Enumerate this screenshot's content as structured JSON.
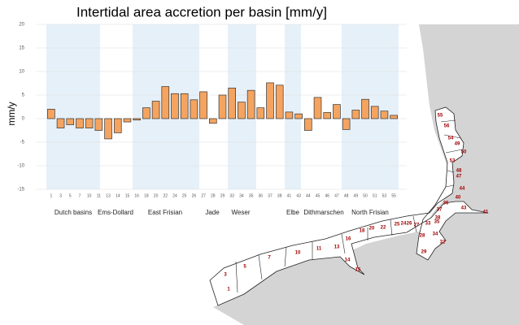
{
  "chart_data": {
    "type": "bar",
    "title": "Intertidal area accretion per basin [mm/y]",
    "y_label": "mm/y",
    "categories": [
      "1",
      "3",
      "5",
      "7",
      "10",
      "11",
      "13",
      "14",
      "15",
      "16",
      "18",
      "20",
      "22",
      "24",
      "25",
      "26",
      "27",
      "28",
      "29",
      "33",
      "34",
      "35",
      "36",
      "37",
      "38",
      "41",
      "43",
      "44",
      "45",
      "46",
      "47",
      "48",
      "49",
      "50",
      "51",
      "53",
      "55"
    ],
    "values": [
      2,
      -2,
      -1.3,
      -2,
      -2,
      -2.5,
      -4.3,
      -3,
      -0.7,
      -0.3,
      2.3,
      3.7,
      6.8,
      5.3,
      5.3,
      4,
      5.7,
      -1,
      5,
      6.5,
      3.5,
      6,
      2.3,
      7.6,
      7.1,
      1.4,
      1,
      -2.5,
      4.5,
      1.3,
      3,
      -2.3,
      1.8,
      4.1,
      2.6,
      1.6,
      0.7
    ],
    "color": "#f4a460",
    "ylim": [
      -15,
      20
    ],
    "yticks": [
      -15,
      -10,
      -5,
      0,
      5,
      10,
      15,
      20
    ],
    "grid": true,
    "groups": [
      "Dutch basins",
      "Ems-Dollard",
      "East Frisian",
      "Jade",
      "Weser",
      "Elbe",
      "Dithmarschen",
      "North Frisian"
    ]
  },
  "map_labels": [
    "55",
    "56",
    "54",
    "49",
    "50",
    "53",
    "48",
    "47",
    "44",
    "40",
    "43",
    "41",
    "37",
    "36",
    "38",
    "33",
    "35",
    "34",
    "28",
    "32",
    "29",
    "27",
    "26",
    "24",
    "25",
    "22",
    "20",
    "18",
    "16",
    "11",
    "13",
    "10",
    "14",
    "15",
    "7",
    "5",
    "3",
    "1"
  ]
}
